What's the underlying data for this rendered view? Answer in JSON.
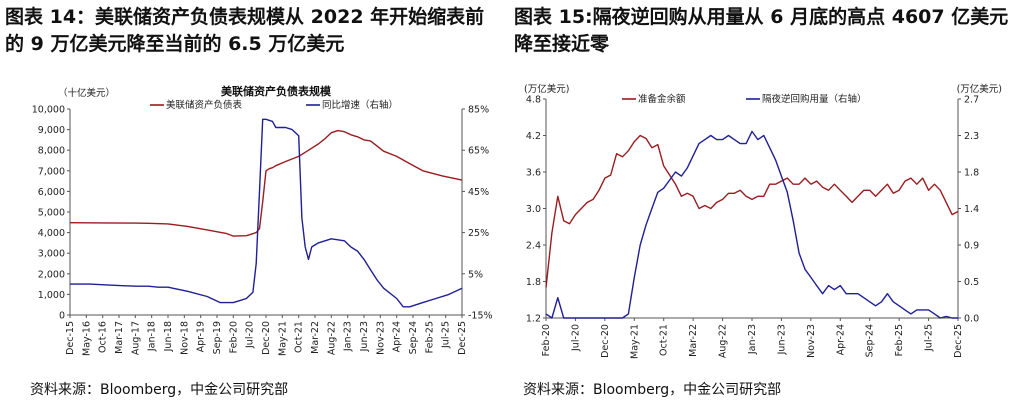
{
  "left_panel": {
    "figure_title": "图表 14：美联储资产负债表规模从 2022 年开始缩表前的 9 万亿美元降至当前的 6.5 万亿美元",
    "source": "资料来源：Bloomberg，中金公司研究部"
  },
  "right_panel": {
    "figure_title": "图表 15:隔夜逆回购从用量从 6 月底的高点 4607 亿美元降至接近零",
    "source": "资料来源：Bloomberg，中金公司研究部"
  },
  "colors": {
    "red": "#9B1B1F",
    "blue": "#1F1F96",
    "axis": "#555555"
  },
  "chart_data": [
    {
      "type": "line",
      "title": "美联储资产负债表规模",
      "y_left_unit": "（十亿美元）",
      "y_left_ticks": [
        "10,000",
        "9,000",
        "8,000",
        "7,000",
        "6,000",
        "5,000",
        "4,000",
        "3,000",
        "2,000",
        "1,000",
        "0"
      ],
      "ylim_left": [
        0,
        10000
      ],
      "y_right_ticks": [
        "85%",
        "65%",
        "45%",
        "25%",
        "5%",
        "-15%"
      ],
      "ylim_right": [
        -15,
        85
      ],
      "x_tick_labels": [
        "Dec-15",
        "May-16",
        "Oct-16",
        "Mar-17",
        "Aug-17",
        "Jan-18",
        "Jun-18",
        "Nov-18",
        "Apr-19",
        "Sep-19",
        "Feb-20",
        "Jul-20",
        "Dec-20",
        "May-21",
        "Oct-21",
        "Mar-22",
        "Aug-22",
        "Jan-23",
        "Jun-23",
        "Nov-23",
        "Apr-24",
        "Sep-24",
        "Feb-25",
        "Jul-25",
        "Dec-25"
      ],
      "x_range_months": [
        0,
        120
      ],
      "series": [
        {
          "name": "美联储资产负债表",
          "axis": "left",
          "color": "red",
          "x": [
            0,
            10,
            20,
            24,
            30,
            36,
            42,
            48,
            50,
            54,
            57,
            58,
            59,
            60,
            61,
            62,
            63,
            66,
            70,
            72,
            76,
            78,
            80,
            82,
            84,
            86,
            88,
            90,
            92,
            94,
            96,
            100,
            104,
            108,
            114,
            120
          ],
          "values": [
            4480,
            4470,
            4460,
            4450,
            4420,
            4300,
            4130,
            3950,
            3830,
            3850,
            4000,
            4200,
            5500,
            7000,
            7100,
            7150,
            7250,
            7450,
            7700,
            7900,
            8300,
            8550,
            8850,
            8950,
            8900,
            8750,
            8650,
            8500,
            8450,
            8200,
            7950,
            7700,
            7350,
            7000,
            6750,
            6550
          ]
        },
        {
          "name": "同比增速（右轴）",
          "axis": "right",
          "color": "blue",
          "x": [
            0,
            6,
            12,
            20,
            24,
            27,
            30,
            36,
            42,
            46,
            48,
            50,
            52,
            54,
            56,
            57,
            58,
            59,
            60,
            62,
            63,
            66,
            68,
            70,
            71,
            72,
            73,
            74,
            76,
            80,
            84,
            86,
            88,
            90,
            92,
            94,
            96,
            100,
            102,
            104,
            108,
            112,
            116,
            120
          ],
          "values": [
            0,
            0,
            -0.5,
            -1,
            -1,
            -1.5,
            -1.5,
            -3.5,
            -6,
            -9,
            -9,
            -9,
            -8,
            -7,
            -4,
            10,
            45,
            80,
            80,
            79,
            76,
            76,
            75,
            72,
            32,
            18,
            12,
            18,
            20,
            22,
            21,
            18,
            16,
            12,
            7,
            2,
            -2,
            -7,
            -11,
            -11,
            -9,
            -7,
            -5,
            -2
          ]
        }
      ],
      "legend": [
        "美联储资产负债表",
        "同比增速（右轴）"
      ]
    },
    {
      "type": "line",
      "y_left_unit": "(万亿美元)",
      "y_left_ticks": [
        "4.8",
        "4.2",
        "3.6",
        "3.0",
        "2.4",
        "1.8",
        "1.2"
      ],
      "ylim_left": [
        1.2,
        4.8
      ],
      "y_right_unit": "(万亿美元)",
      "y_right_ticks": [
        "2.7",
        "2.3",
        "1.8",
        "1.4",
        "0.9",
        "0.5",
        "0.0"
      ],
      "ylim_right": [
        0,
        2.7
      ],
      "x_tick_labels": [
        "Feb-20",
        "Jul-20",
        "Dec-20",
        "May-21",
        "Oct-21",
        "Mar-22",
        "Aug-22",
        "Jan-23",
        "Jun-23",
        "Nov-23",
        "Apr-24",
        "Sep-24",
        "Feb-25",
        "Jul-25",
        "Dec-25"
      ],
      "x_range_months": [
        0,
        70
      ],
      "series": [
        {
          "name": "准备金余额",
          "axis": "left",
          "color": "red",
          "x": [
            0,
            1,
            2,
            3,
            4,
            5,
            6,
            7,
            8,
            9,
            10,
            11,
            12,
            13,
            14,
            15,
            16,
            17,
            18,
            19,
            20,
            21,
            22,
            23,
            24,
            25,
            26,
            27,
            28,
            29,
            30,
            31,
            32,
            33,
            34,
            35,
            36,
            37,
            38,
            39,
            40,
            41,
            42,
            43,
            44,
            45,
            46,
            47,
            48,
            49,
            50,
            51,
            52,
            53,
            54,
            55,
            56,
            57,
            58,
            59,
            60,
            61,
            62,
            63,
            64,
            65,
            66,
            67,
            68,
            69,
            70
          ],
          "values": [
            1.7,
            2.6,
            3.2,
            2.8,
            2.75,
            2.9,
            3.0,
            3.1,
            3.15,
            3.3,
            3.5,
            3.55,
            3.9,
            3.85,
            3.95,
            4.1,
            4.2,
            4.15,
            4.0,
            4.05,
            3.7,
            3.55,
            3.4,
            3.2,
            3.25,
            3.2,
            3.0,
            3.05,
            3.0,
            3.1,
            3.15,
            3.25,
            3.25,
            3.3,
            3.2,
            3.15,
            3.2,
            3.2,
            3.4,
            3.4,
            3.45,
            3.5,
            3.4,
            3.4,
            3.5,
            3.4,
            3.45,
            3.35,
            3.3,
            3.4,
            3.3,
            3.2,
            3.1,
            3.2,
            3.3,
            3.3,
            3.2,
            3.3,
            3.4,
            3.25,
            3.3,
            3.45,
            3.5,
            3.4,
            3.5,
            3.3,
            3.4,
            3.3,
            3.1,
            2.9,
            2.95
          ]
        },
        {
          "name": "隔夜逆回购用量（右轴）",
          "axis": "right",
          "color": "blue",
          "x": [
            0,
            1,
            2,
            3,
            4,
            5,
            6,
            7,
            8,
            9,
            10,
            11,
            12,
            13,
            14,
            15,
            16,
            17,
            18,
            19,
            20,
            21,
            22,
            23,
            24,
            25,
            26,
            27,
            28,
            29,
            30,
            31,
            32,
            33,
            34,
            35,
            36,
            37,
            38,
            39,
            40,
            41,
            42,
            43,
            44,
            45,
            46,
            47,
            48,
            49,
            50,
            51,
            52,
            53,
            54,
            55,
            56,
            57,
            58,
            59,
            60,
            61,
            62,
            63,
            64,
            65,
            66,
            67,
            68,
            69,
            70
          ],
          "values": [
            0.05,
            0.0,
            0.25,
            0.0,
            0.0,
            0.0,
            0.0,
            0.0,
            0.0,
            0.0,
            0.0,
            0.0,
            0.0,
            0.0,
            0.05,
            0.5,
            0.9,
            1.15,
            1.35,
            1.55,
            1.6,
            1.7,
            1.8,
            1.75,
            1.85,
            2.0,
            2.15,
            2.2,
            2.25,
            2.2,
            2.2,
            2.25,
            2.2,
            2.15,
            2.15,
            2.3,
            2.2,
            2.25,
            2.1,
            1.95,
            1.75,
            1.55,
            1.2,
            0.8,
            0.6,
            0.5,
            0.4,
            0.3,
            0.4,
            0.35,
            0.4,
            0.3,
            0.3,
            0.3,
            0.25,
            0.2,
            0.15,
            0.2,
            0.3,
            0.2,
            0.15,
            0.1,
            0.05,
            0.1,
            0.1,
            0.1,
            0.05,
            0.0,
            0.02,
            0.0,
            0.0
          ]
        }
      ],
      "legend": [
        "准备金余额",
        "隔夜逆回购用量（右轴）"
      ]
    }
  ]
}
